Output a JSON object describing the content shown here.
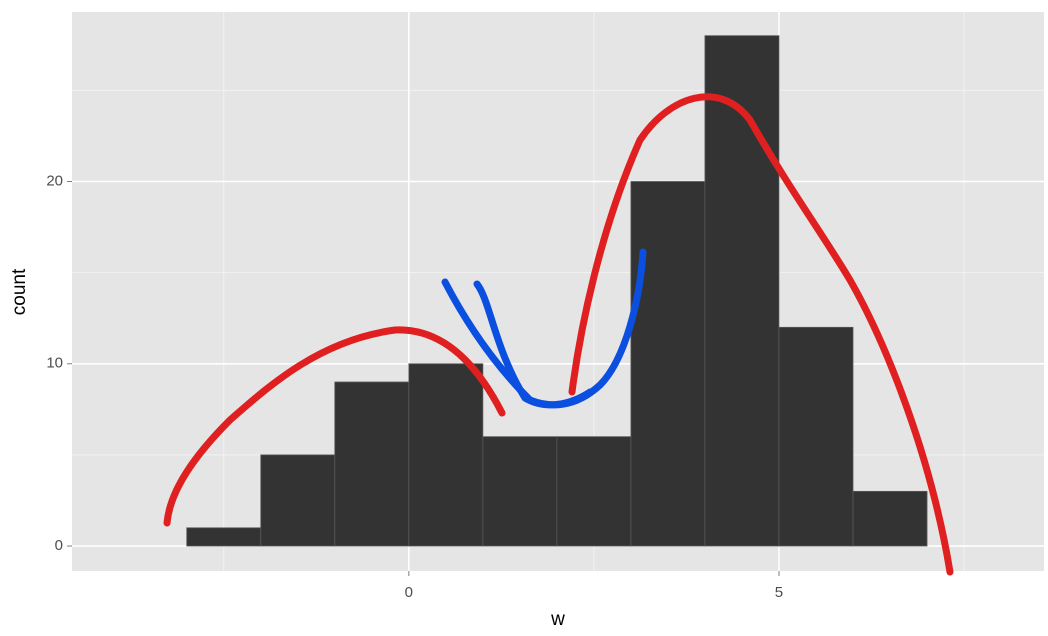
{
  "chart_data": {
    "type": "histogram",
    "x_label": "w",
    "y_label": "count",
    "bins": [
      -3,
      -2,
      -1,
      0,
      1,
      2,
      3,
      4,
      5,
      6,
      7
    ],
    "values": [
      1,
      5,
      9,
      10,
      6,
      6,
      20,
      28,
      12,
      3
    ],
    "color": "#333333",
    "xlim": [
      -4.55,
      8.58
    ],
    "ylim": [
      -1.37,
      29.3
    ],
    "xticks": [
      0,
      5
    ],
    "yticks": [
      0,
      10,
      20
    ],
    "x_minor_grid": [
      -2.5,
      2.5,
      7.5
    ],
    "y_minor_grid": [
      5,
      15,
      25
    ],
    "grid": true
  }
}
